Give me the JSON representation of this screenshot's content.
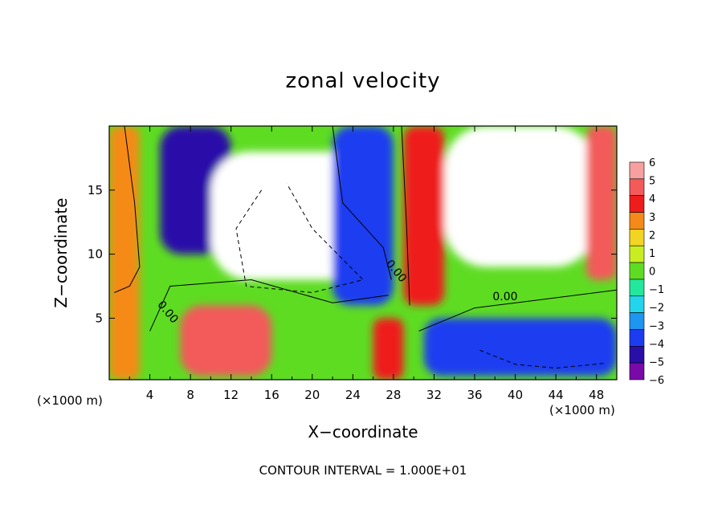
{
  "chart_data": {
    "type": "heatmap",
    "title": "zonal velocity",
    "xlabel": "X−coordinate",
    "ylabel": "Z−coordinate",
    "x_unit_left": "(×1000 m)",
    "x_unit_right": "(×1000 m)",
    "footer": "CONTOUR INTERVAL = 1.000E+01",
    "xlim": [
      0,
      50
    ],
    "ylim": [
      0.2,
      20
    ],
    "x_ticks": [
      4,
      8,
      12,
      16,
      20,
      24,
      28,
      32,
      36,
      40,
      44,
      48
    ],
    "x_tick_labels": [
      "4",
      "8",
      "12",
      "16",
      "20",
      "24",
      "28",
      "32",
      "36",
      "40",
      "44",
      "48"
    ],
    "y_ticks": [
      5,
      10,
      15
    ],
    "y_tick_labels": [
      "5",
      "10",
      "15"
    ],
    "colorbar": {
      "range": [
        -6,
        6
      ],
      "levels": [
        6,
        5,
        4,
        3,
        2,
        1,
        0,
        -1,
        -2,
        -3,
        -4,
        -5,
        -6
      ],
      "level_labels": [
        "6",
        "5",
        "4",
        "3",
        "2",
        "1",
        "0",
        "−1",
        "−2",
        "−3",
        "−4",
        "−5",
        "−6"
      ],
      "colors": [
        "#f7a0a0",
        "#f35a5a",
        "#ef1c1c",
        "#f58a18",
        "#f2d422",
        "#c8ee22",
        "#5edc22",
        "#22e79c",
        "#22d5ec",
        "#1c96f0",
        "#1c3cf0",
        "#2a0ea8",
        "#7a0aa8"
      ]
    },
    "contour_labels": [
      "0.00",
      "0.00",
      "0.00"
    ],
    "field_regions": [
      {
        "name": "left-boundary-positive",
        "x": [
          0,
          3
        ],
        "y": [
          0.2,
          20
        ],
        "value": 3
      },
      {
        "name": "upper-left-negative-jet",
        "x": [
          5,
          12
        ],
        "y": [
          10,
          20
        ],
        "value": -5
      },
      {
        "name": "central-white-out-of-range",
        "x": [
          10,
          27
        ],
        "y": [
          8,
          18
        ],
        "value": -8
      },
      {
        "name": "central-negative-column",
        "x": [
          22,
          28
        ],
        "y": [
          6,
          20
        ],
        "value": -4
      },
      {
        "name": "central-positive-column",
        "x": [
          29,
          33
        ],
        "y": [
          6,
          20
        ],
        "value": 4
      },
      {
        "name": "right-white-out-of-range",
        "x": [
          33,
          48
        ],
        "y": [
          9,
          20
        ],
        "value": 8
      },
      {
        "name": "right-boundary-positive",
        "x": [
          47,
          50
        ],
        "y": [
          8,
          20
        ],
        "value": 5
      },
      {
        "name": "lower-left-positive-patch",
        "x": [
          7,
          16
        ],
        "y": [
          0.5,
          6
        ],
        "value": 5
      },
      {
        "name": "lower-mid-positive-column",
        "x": [
          26,
          29
        ],
        "y": [
          0.2,
          5
        ],
        "value": 4
      },
      {
        "name": "lower-right-negative",
        "x": [
          31,
          50
        ],
        "y": [
          0.5,
          5
        ],
        "value": -4
      }
    ]
  }
}
